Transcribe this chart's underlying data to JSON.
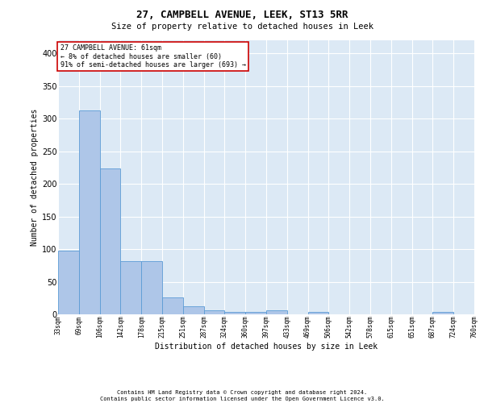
{
  "title1": "27, CAMPBELL AVENUE, LEEK, ST13 5RR",
  "title2": "Size of property relative to detached houses in Leek",
  "xlabel": "Distribution of detached houses by size in Leek",
  "ylabel": "Number of detached properties",
  "footnote1": "Contains HM Land Registry data © Crown copyright and database right 2024.",
  "footnote2": "Contains public sector information licensed under the Open Government Licence v3.0.",
  "annotation_line1": "27 CAMPBELL AVENUE: 61sqm",
  "annotation_line2": "← 8% of detached houses are smaller (60)",
  "annotation_line3": "91% of semi-detached houses are larger (693) →",
  "bar_values": [
    98,
    312,
    224,
    81,
    81,
    26,
    12,
    6,
    4,
    4,
    6,
    0,
    4,
    0,
    0,
    0,
    0,
    0,
    4,
    0
  ],
  "bin_labels": [
    "33sqm",
    "69sqm",
    "106sqm",
    "142sqm",
    "178sqm",
    "215sqm",
    "251sqm",
    "287sqm",
    "324sqm",
    "360sqm",
    "397sqm",
    "433sqm",
    "469sqm",
    "506sqm",
    "542sqm",
    "578sqm",
    "615sqm",
    "651sqm",
    "687sqm",
    "724sqm",
    "760sqm"
  ],
  "bar_color": "#aec6e8",
  "bar_edge_color": "#5b9bd5",
  "bg_color": "#dce9f5",
  "grid_color": "#ffffff",
  "ylim": [
    0,
    420
  ],
  "yticks": [
    0,
    50,
    100,
    150,
    200,
    250,
    300,
    350,
    400
  ],
  "annotation_box_color": "#ffffff",
  "annotation_border_color": "#cc0000",
  "title1_fontsize": 9,
  "title2_fontsize": 7.5,
  "ylabel_fontsize": 7,
  "xlabel_fontsize": 7,
  "tick_fontsize": 7,
  "xtick_fontsize": 5.5,
  "annot_fontsize": 6,
  "footnote_fontsize": 5
}
